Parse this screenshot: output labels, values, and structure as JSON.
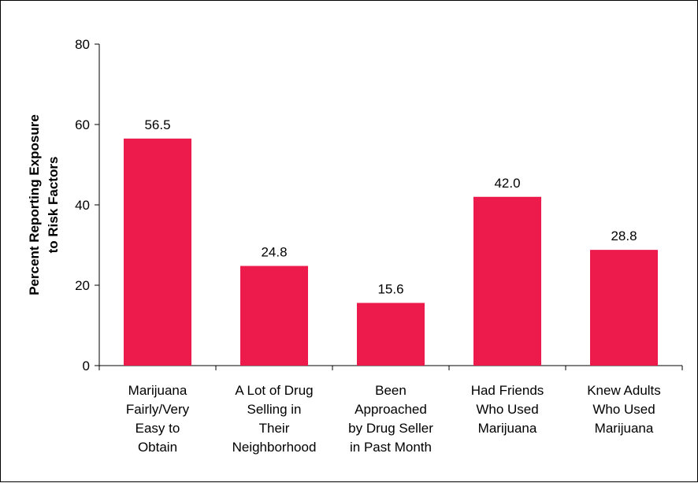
{
  "chart_data": {
    "type": "bar",
    "categories": [
      [
        "Marijuana",
        "Fairly/Very",
        "Easy to",
        "Obtain"
      ],
      [
        "A Lot of Drug",
        "Selling in",
        "Their",
        "Neighborhood"
      ],
      [
        "Been",
        "Approached",
        "by Drug Seller",
        "in Past Month"
      ],
      [
        "Had Friends",
        "Who Used",
        "Marijuana"
      ],
      [
        "Knew Adults",
        "Who Used",
        "Marijuana"
      ]
    ],
    "values": [
      56.5,
      24.8,
      15.6,
      42.0,
      28.8
    ],
    "value_labels": [
      "56.5",
      "24.8",
      "15.6",
      "42.0",
      "28.8"
    ],
    "ylabel": [
      "Percent Reporting Exposure",
      "to Risk Factors"
    ],
    "ylim": [
      0,
      80
    ],
    "yticks": [
      0,
      20,
      40,
      60,
      80
    ],
    "grid": false,
    "bar_color": "#ec1b4b"
  }
}
